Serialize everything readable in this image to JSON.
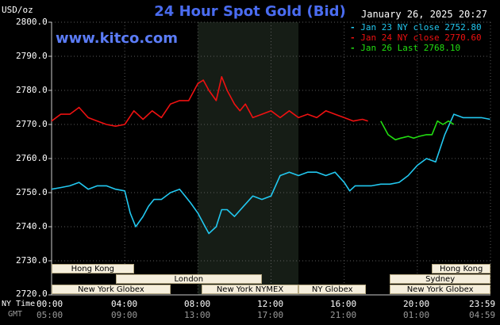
{
  "chart_data": {
    "type": "line",
    "title": "24 Hour Spot Gold (Bid)",
    "ylabel": "USD/oz",
    "site": "www.kitco.com",
    "timestamp": "January 26, 2025 20:27",
    "ylim": [
      2720,
      2800
    ],
    "yticks": [
      "2800.0",
      "2790.0",
      "2780.0",
      "2770.0",
      "2760.0",
      "2750.0",
      "2740.0",
      "2730.0",
      "2720.0"
    ],
    "ytick_values": [
      2800,
      2790,
      2780,
      2770,
      2760,
      2750,
      2740,
      2730,
      2720
    ],
    "xlim": [
      0,
      24
    ],
    "xticks_ny": [
      "00:00",
      "04:00",
      "08:00",
      "12:00",
      "16:00",
      "20:00",
      "23:59"
    ],
    "xticks_gmt": [
      "05:00",
      "09:00",
      "13:00",
      "17:00",
      "21:00",
      "01:00",
      "04:59"
    ],
    "xtick_positions": [
      0,
      4,
      8,
      12,
      16,
      20,
      24
    ],
    "row_labels": {
      "ny": "NY Time",
      "gmt": "GMT"
    },
    "highlight_band": [
      8,
      13.5
    ],
    "grid": true,
    "legend_position": "top-right",
    "series": [
      {
        "name": "Jan 23 NY close 2752.80",
        "color": "#22c8f0",
        "x": [
          0,
          0.5,
          1,
          1.5,
          2,
          2.5,
          3,
          3.5,
          4,
          4.3,
          4.6,
          5,
          5.3,
          5.6,
          6,
          6.5,
          7,
          7.3,
          7.6,
          8,
          8.3,
          8.6,
          9,
          9.3,
          9.6,
          10,
          10.5,
          11,
          11.5,
          12,
          12.5,
          13,
          13.5,
          14,
          14.5,
          15,
          15.5,
          16,
          16.3,
          16.6,
          17,
          17.5,
          18,
          18.5,
          19,
          19.5,
          20,
          20.5,
          21,
          21.5,
          22,
          22.5,
          23,
          23.5,
          23.98
        ],
        "y": [
          2751,
          2751.5,
          2752,
          2753,
          2751,
          2752,
          2752,
          2751,
          2750.5,
          2744,
          2740,
          2743,
          2746,
          2748,
          2748,
          2750,
          2751,
          2749,
          2747,
          2744,
          2741,
          2738,
          2740,
          2745,
          2745,
          2743,
          2746,
          2749,
          2748,
          2749,
          2755,
          2756,
          2755,
          2756,
          2756,
          2755,
          2756,
          2753,
          2750.5,
          2752,
          2752,
          2752,
          2752.5,
          2752.5,
          2753,
          2755,
          2758,
          2760,
          2759,
          2767,
          2773,
          2772,
          2772,
          2772,
          2771.5
        ]
      },
      {
        "name": "Jan 24 NY close 2770.60",
        "color": "#ee1111",
        "x": [
          0,
          0.5,
          1,
          1.5,
          2,
          2.5,
          3,
          3.5,
          4,
          4.5,
          5,
          5.5,
          6,
          6.5,
          7,
          7.5,
          8,
          8.3,
          8.6,
          9,
          9.3,
          9.6,
          10,
          10.3,
          10.6,
          11,
          11.5,
          12,
          12.5,
          13,
          13.5,
          14,
          14.5,
          15,
          15.5,
          16,
          16.5,
          17,
          17.3
        ],
        "y": [
          2771,
          2773,
          2773,
          2775,
          2772,
          2771,
          2770,
          2769.5,
          2770,
          2774,
          2771.5,
          2774,
          2772,
          2776,
          2777,
          2777,
          2782,
          2783,
          2780,
          2777,
          2784,
          2780,
          2776,
          2774,
          2776,
          2772,
          2773,
          2774,
          2772,
          2774,
          2772,
          2773,
          2772,
          2774,
          2773,
          2772,
          2771,
          2771.5,
          2771
        ]
      },
      {
        "name": "Jan 26 Last 2768.10",
        "color": "#22dd11",
        "x": [
          18,
          18.4,
          18.8,
          19.1,
          19.5,
          19.8,
          20.1,
          20.5,
          20.8,
          21.1,
          21.4,
          21.7,
          22.0
        ],
        "y": [
          2771,
          2767,
          2765.5,
          2766,
          2766.5,
          2766,
          2766.5,
          2767,
          2767,
          2771,
          2770,
          2771,
          2770
        ]
      }
    ],
    "sessions": [
      {
        "label": "Hong Kong",
        "row": 0,
        "start": 0,
        "end": 4.5
      },
      {
        "label": "Hong Kong",
        "row": 0,
        "start": 20.8,
        "end": 24
      },
      {
        "label": "London",
        "row": 1,
        "start": 3.5,
        "end": 11.5
      },
      {
        "label": "Sydney",
        "row": 1,
        "start": 18.5,
        "end": 24
      },
      {
        "label": "New York Globex",
        "row": 2,
        "start": 0,
        "end": 6.5
      },
      {
        "label": "New York NYMEX",
        "row": 2,
        "start": 8.2,
        "end": 13.5
      },
      {
        "label": "NY Globex",
        "row": 2,
        "start": 13.5,
        "end": 17.2
      },
      {
        "label": "New York Globex",
        "row": 2,
        "start": 18.5,
        "end": 24
      }
    ]
  }
}
